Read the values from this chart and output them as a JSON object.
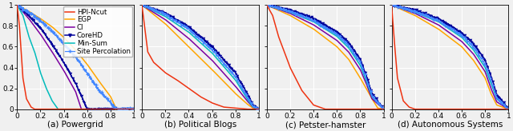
{
  "subplots": [
    {
      "title": "(a) Powergrid"
    },
    {
      "title": "(b) Political Blogs"
    },
    {
      "title": "(c) Petster-hamster"
    },
    {
      "title": "(d) Autonomous Systems"
    }
  ],
  "legend_labels": [
    "HPI-Ncut",
    "EGP",
    "CI",
    "CoreHD",
    "Min-Sum",
    "Site Percolation"
  ],
  "colors": {
    "HPI-Ncut": "#EE3311",
    "EGP": "#FFA500",
    "CI": "#7B00A0",
    "CoreHD": "#00009A",
    "Min-Sum": "#00BBBB",
    "Site Percolation": "#4488FF"
  },
  "background_color": "#f0f0f0",
  "grid_color": "#ffffff",
  "title_fontsize": 7.5,
  "legend_fontsize": 6.2,
  "tick_fontsize": 6.5
}
